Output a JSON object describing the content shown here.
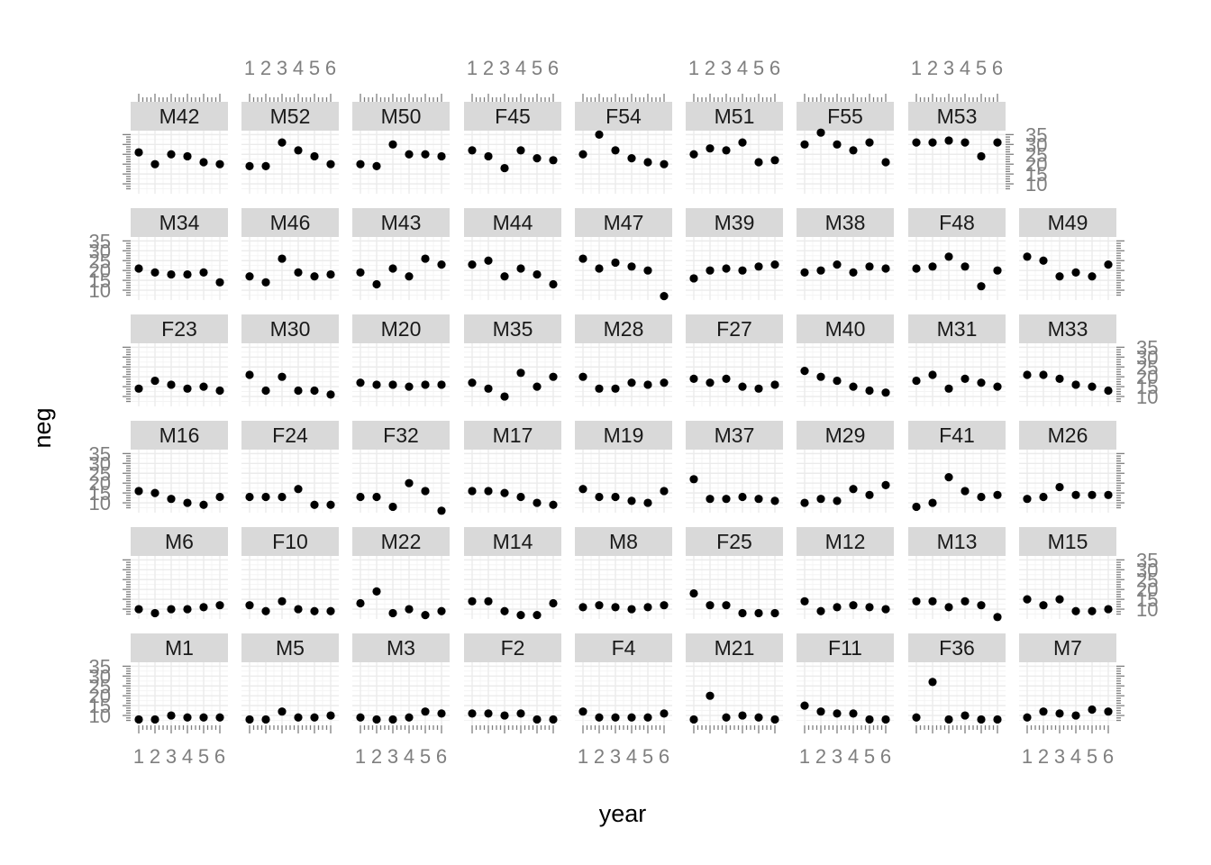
{
  "chart_data": {
    "type": "scatter",
    "layout": "faceted 6 rows x 9 columns",
    "xlabel": "year",
    "ylabel": "neg",
    "xlim": [
      0.5,
      6.5
    ],
    "ylim": [
      5,
      37
    ],
    "x_ticks": [
      "1",
      "2",
      "3",
      "4",
      "5",
      "6"
    ],
    "y_ticks": [
      "10",
      "15",
      "20",
      "25",
      "30",
      "35"
    ],
    "grid": true,
    "rows": [
      [
        "M42",
        "M52",
        "M50",
        "F45",
        "F54",
        "M51",
        "F55",
        "M53",
        null
      ],
      [
        "M34",
        "M46",
        "M43",
        "M44",
        "M47",
        "M39",
        "M38",
        "F48",
        "M49"
      ],
      [
        "F23",
        "M30",
        "M20",
        "M35",
        "M28",
        "F27",
        "M40",
        "M31",
        "M33"
      ],
      [
        "M16",
        "F24",
        "F32",
        "M17",
        "M19",
        "M37",
        "M29",
        "F41",
        "M26"
      ],
      [
        "M6",
        "F10",
        "M22",
        "M14",
        "M8",
        "F25",
        "M12",
        "M13",
        "M15"
      ],
      [
        "M1",
        "M5",
        "M3",
        "F2",
        "F4",
        "M21",
        "F11",
        "F36",
        "M7"
      ]
    ],
    "panels": {
      "M42": [
        26,
        20,
        25,
        24,
        21,
        20
      ],
      "M52": [
        19,
        19,
        31,
        27,
        24,
        20
      ],
      "M50": [
        20,
        19,
        30,
        25,
        25,
        24
      ],
      "F45": [
        27,
        24,
        18,
        27,
        23,
        22
      ],
      "F54": [
        25,
        35,
        27,
        23,
        21,
        20
      ],
      "M51": [
        25,
        28,
        27,
        31,
        21,
        22
      ],
      "F55": [
        30,
        36,
        30,
        27,
        31,
        21
      ],
      "M53": [
        31,
        31,
        32,
        31,
        24,
        31
      ],
      "M34": [
        21,
        19,
        18,
        18,
        19,
        14
      ],
      "M46": [
        17,
        14,
        26,
        19,
        17,
        18
      ],
      "M43": [
        19,
        13,
        21,
        17,
        26,
        23
      ],
      "M44": [
        23,
        25,
        17,
        21,
        18,
        13
      ],
      "M47": [
        26,
        21,
        24,
        22,
        20,
        7
      ],
      "M39": [
        16,
        20,
        21,
        20,
        22,
        23
      ],
      "M38": [
        19,
        20,
        23,
        19,
        22,
        21
      ],
      "F48": [
        21,
        22,
        27,
        22,
        12,
        20
      ],
      "M49": [
        27,
        25,
        17,
        19,
        17,
        23
      ],
      "F23": [
        14,
        18,
        16,
        14,
        15,
        13
      ],
      "M30": [
        21,
        13,
        20,
        13,
        13,
        11
      ],
      "M20": [
        17,
        16,
        16,
        15,
        16,
        16
      ],
      "M35": [
        17,
        14,
        10,
        22,
        15,
        20
      ],
      "M28": [
        20,
        14,
        14,
        17,
        16,
        17
      ],
      "F27": [
        19,
        17,
        19,
        15,
        14,
        16
      ],
      "M40": [
        23,
        20,
        18,
        15,
        13,
        12
      ],
      "M31": [
        18,
        21,
        14,
        19,
        17,
        15
      ],
      "M33": [
        21,
        21,
        19,
        16,
        15,
        13
      ],
      "M16": [
        16,
        15,
        12,
        10,
        9,
        13
      ],
      "F24": [
        13,
        13,
        13,
        17,
        9,
        9
      ],
      "F32": [
        13,
        13,
        8,
        20,
        16,
        6
      ],
      "M17": [
        16,
        16,
        15,
        13,
        10,
        9
      ],
      "M19": [
        17,
        13,
        13,
        11,
        10,
        16
      ],
      "M37": [
        22,
        12,
        12,
        13,
        12,
        11
      ],
      "M29": [
        10,
        12,
        11,
        17,
        14,
        19
      ],
      "F41": [
        8,
        10,
        23,
        16,
        13,
        14
      ],
      "M26": [
        12,
        13,
        18,
        14,
        14,
        14
      ],
      "M6": [
        10,
        8,
        10,
        10,
        11,
        12
      ],
      "F10": [
        12,
        9,
        14,
        10,
        9,
        9
      ],
      "M22": [
        13,
        19,
        8,
        10,
        7,
        9
      ],
      "M14": [
        14,
        14,
        9,
        7,
        7,
        13
      ],
      "M8": [
        11,
        12,
        11,
        10,
        11,
        12
      ],
      "F25": [
        18,
        12,
        12,
        8,
        8,
        8
      ],
      "M12": [
        14,
        9,
        11,
        12,
        11,
        10
      ],
      "M13": [
        14,
        14,
        11,
        14,
        12,
        6
      ],
      "M15": [
        15,
        12,
        15,
        9,
        9,
        10
      ],
      "M1": [
        8,
        8,
        10,
        9,
        9,
        9
      ],
      "M5": [
        8,
        8,
        12,
        9,
        9,
        10
      ],
      "M3": [
        9,
        8,
        8,
        9,
        12,
        11
      ],
      "F2": [
        11,
        11,
        10,
        11,
        8,
        8
      ],
      "F4": [
        12,
        9,
        9,
        9,
        9,
        11
      ],
      "M21": [
        8,
        20,
        9,
        10,
        9,
        8
      ],
      "F11": [
        15,
        12,
        11,
        11,
        8,
        8
      ],
      "F36": [
        9,
        27,
        8,
        10,
        8,
        8
      ],
      "M7": [
        9,
        12,
        11,
        10,
        13,
        12
      ]
    }
  }
}
